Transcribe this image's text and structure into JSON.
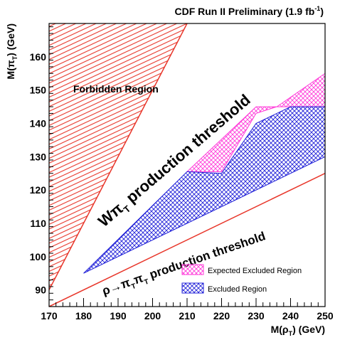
{
  "chart_data": {
    "type": "area",
    "title": "CDF Run II Preliminary (1.9 fb",
    "title_sup": "-1",
    "title_end": ")",
    "x_label_main": "M(ρ",
    "x_label_sub": "T",
    "x_label_end": ") (GeV)",
    "y_label_main": "M(π",
    "y_label_sub": "T",
    "y_label_end": ") (GeV)",
    "xlim": [
      170,
      250
    ],
    "ylim": [
      85,
      170
    ],
    "x_ticks": [
      "170",
      "180",
      "190",
      "200",
      "210",
      "220",
      "230",
      "240",
      "250"
    ],
    "y_ticks": [
      "90",
      "100",
      "110",
      "120",
      "130",
      "140",
      "150",
      "160"
    ],
    "colors": {
      "forbidden": "#e8362a",
      "threshold": "#e8362a",
      "expected": "#ff3ad9",
      "excluded": "#2020d8"
    },
    "regions": [
      {
        "name": "Forbidden Region",
        "label": "Forbidden Region",
        "polygon": [
          [
            170,
            90
          ],
          [
            170,
            170
          ],
          [
            210,
            170
          ]
        ]
      },
      {
        "name": "Expected Excluded Region",
        "polygon": [
          [
            210,
            125.5
          ],
          [
            230,
            145
          ],
          [
            250,
            145
          ],
          [
            250,
            155
          ],
          [
            236,
            145
          ],
          [
            230,
            143
          ],
          [
            220,
            125.5
          ]
        ]
      },
      {
        "name": "Excluded Region",
        "polygon": [
          [
            180,
            95
          ],
          [
            210,
            125.5
          ],
          [
            220,
            125
          ],
          [
            230,
            140
          ],
          [
            240,
            145
          ],
          [
            250,
            145
          ],
          [
            250,
            130
          ],
          [
            180,
            95
          ]
        ]
      }
    ],
    "lines": [
      {
        "name": "W pi_T production threshold",
        "points": [
          [
            170,
            90
          ],
          [
            210,
            170
          ]
        ]
      },
      {
        "name": "rho_T -> pi_T pi_T production threshold",
        "points": [
          [
            170,
            85
          ],
          [
            250,
            125
          ]
        ]
      }
    ],
    "annotations": {
      "w_threshold": {
        "main": "Wπ",
        "sub": "T",
        "rest": " production threshold"
      },
      "rho_threshold": {
        "a": "ρ→π",
        "b": "π",
        "sub": "T",
        "rest": " production threshold"
      }
    },
    "legend": {
      "placement": "bottom-right",
      "entries": [
        {
          "label": "Expected Excluded Region",
          "color": "#ff3ad9"
        },
        {
          "label": "Excluded Region",
          "color": "#2020d8"
        }
      ]
    }
  }
}
